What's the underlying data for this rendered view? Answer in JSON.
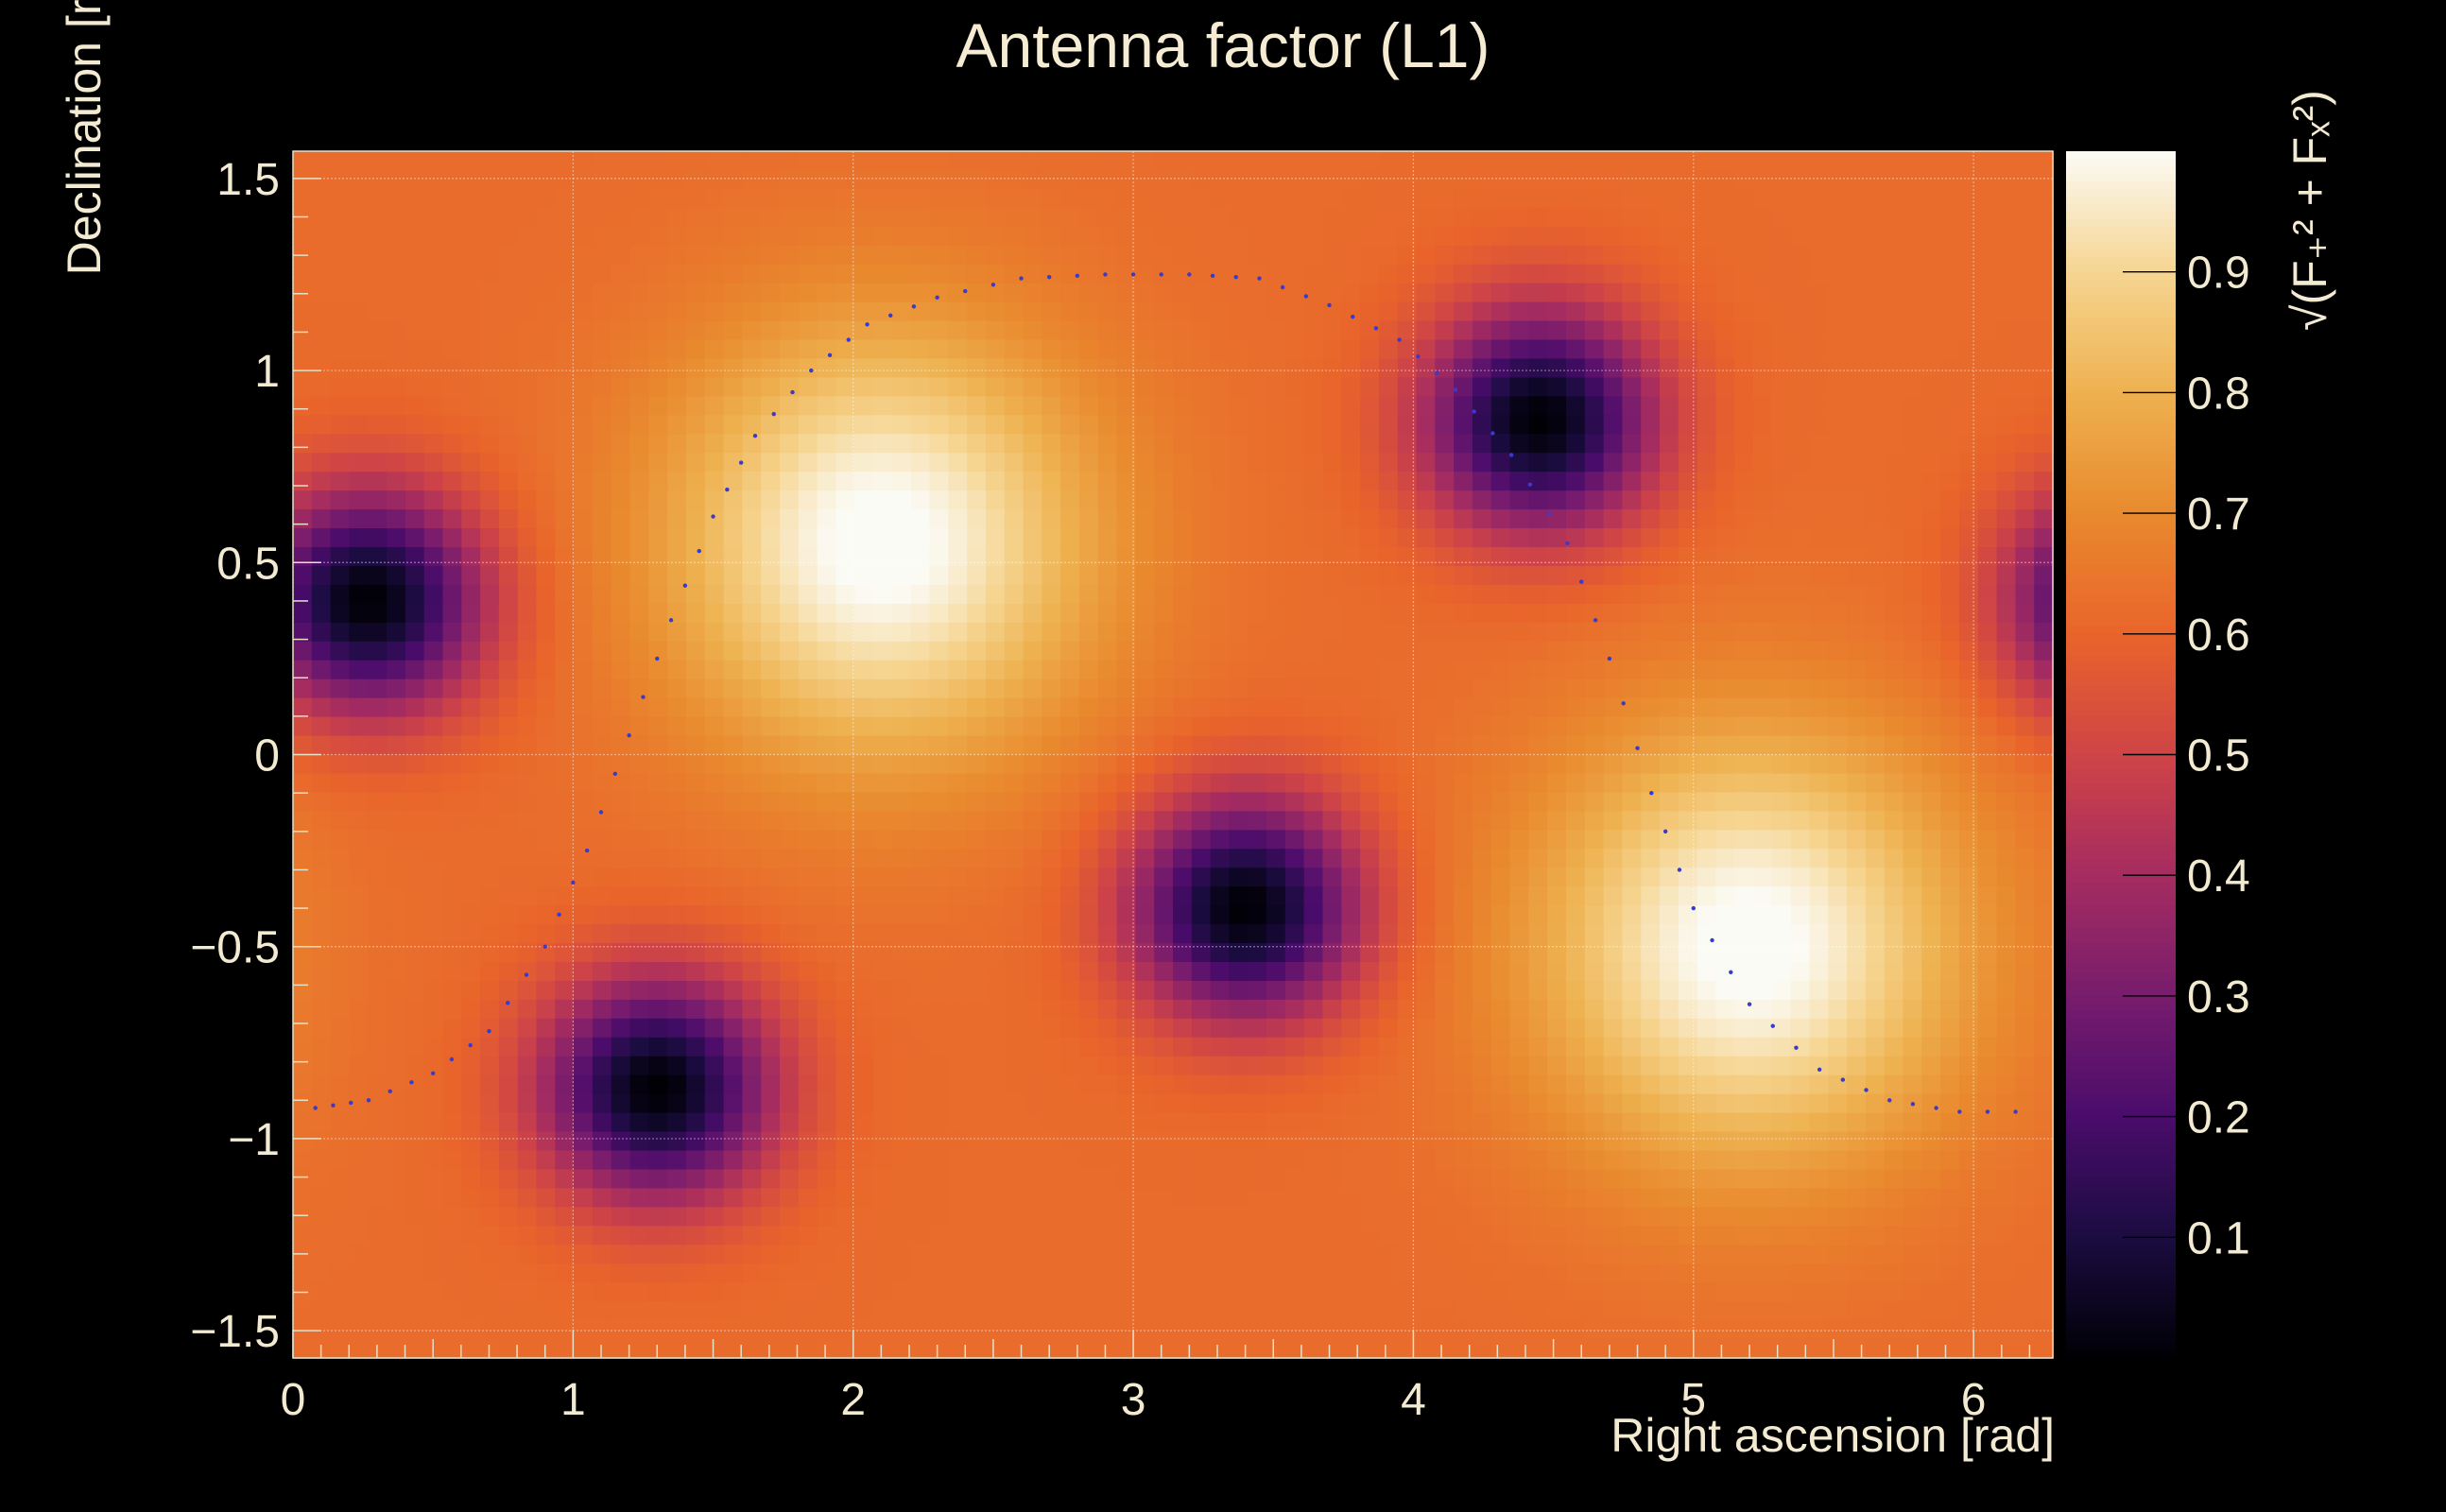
{
  "chart_data": {
    "type": "heatmap",
    "title": "Antenna factor (L1)",
    "xlabel": "Right ascension [rad]",
    "ylabel": "Declination [rad]",
    "zlabel": "√(F₊² + Fₓ²)",
    "xlim": [
      0,
      6.283
    ],
    "ylim": [
      -1.571,
      1.571
    ],
    "zlim": [
      0,
      1
    ],
    "x_ticks": [
      "0",
      "1",
      "2",
      "3",
      "4",
      "5",
      "6"
    ],
    "y_ticks": [
      "−1.5",
      "−1",
      "−0.5",
      "0",
      "0.5",
      "1",
      "1.5"
    ],
    "z_ticks": [
      "0.1",
      "0.2",
      "0.3",
      "0.4",
      "0.5",
      "0.6",
      "0.7",
      "0.8",
      "0.9"
    ],
    "grid": true,
    "colormap": [
      "#000004",
      "#1b0c41",
      "#4a0c6b",
      "#781c6d",
      "#a52c60",
      "#cf4446",
      "#e9642b",
      "#e98a2e",
      "#eeb14f",
      "#f6d591",
      "#fbfbf6"
    ],
    "extrema": [
      {
        "kind": "max",
        "x": 2.1,
        "y": 0.55,
        "value": 1.0
      },
      {
        "kind": "max",
        "x": 5.2,
        "y": -0.5,
        "value": 1.0
      },
      {
        "kind": "min",
        "x": 0.27,
        "y": 0.4,
        "value": 0.0
      },
      {
        "kind": "min",
        "x": 1.3,
        "y": -0.87,
        "value": 0.0
      },
      {
        "kind": "min",
        "x": 3.4,
        "y": -0.4,
        "value": 0.0
      },
      {
        "kind": "min",
        "x": 4.45,
        "y": 0.87,
        "value": 0.0
      }
    ],
    "dotted_curve_color": "#3a3acc",
    "dotted_curve": [
      [
        0.08,
        -0.92
      ],
      [
        0.27,
        -0.9
      ],
      [
        0.5,
        -0.83
      ],
      [
        0.7,
        -0.72
      ],
      [
        0.9,
        -0.5
      ],
      [
        1.05,
        -0.25
      ],
      [
        1.2,
        0.05
      ],
      [
        1.35,
        0.35
      ],
      [
        1.5,
        0.62
      ],
      [
        1.65,
        0.83
      ],
      [
        1.85,
        1.0
      ],
      [
        2.05,
        1.12
      ],
      [
        2.3,
        1.19
      ],
      [
        2.6,
        1.24
      ],
      [
        2.9,
        1.25
      ],
      [
        3.2,
        1.25
      ],
      [
        3.45,
        1.24
      ],
      [
        3.7,
        1.17
      ],
      [
        3.95,
        1.08
      ],
      [
        4.15,
        0.95
      ],
      [
        4.35,
        0.78
      ],
      [
        4.55,
        0.55
      ],
      [
        4.7,
        0.25
      ],
      [
        4.85,
        -0.1
      ],
      [
        5.0,
        -0.4
      ],
      [
        5.2,
        -0.65
      ],
      [
        5.45,
        -0.82
      ],
      [
        5.7,
        -0.9
      ],
      [
        5.95,
        -0.93
      ],
      [
        6.25,
        -0.93
      ]
    ]
  }
}
